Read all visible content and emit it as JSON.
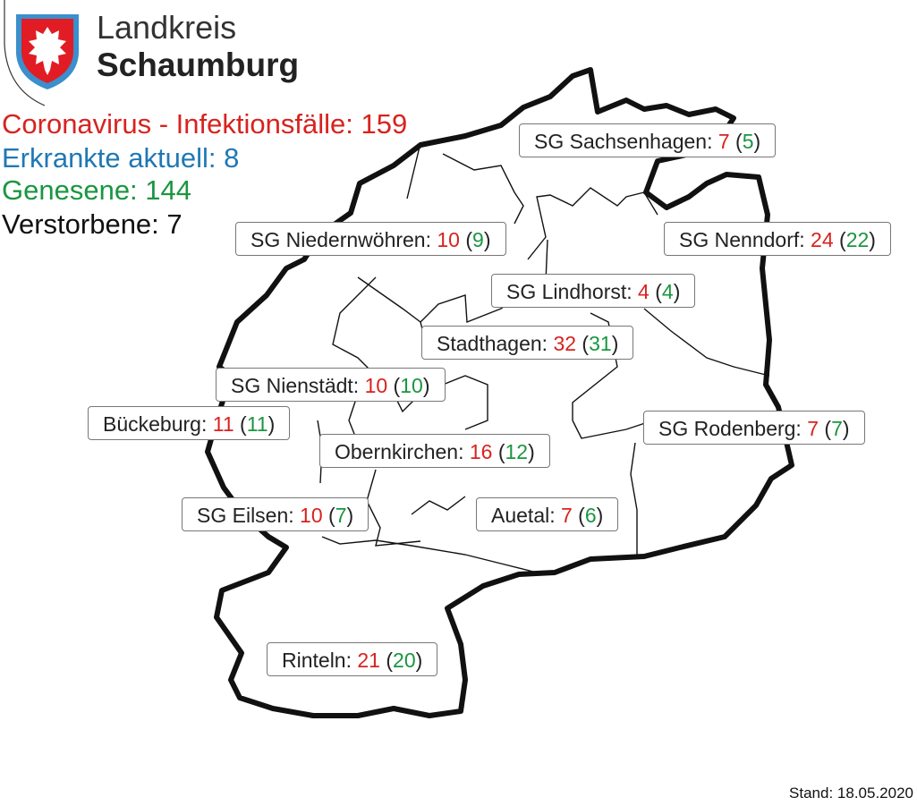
{
  "header": {
    "brand_line1": "Landkreis",
    "brand_line2": "Schaumburg",
    "logo_icon": "coat-of-arms-nettle-leaf-icon"
  },
  "stats": [
    {
      "text": "Coronavirus - Infektionsfälle: 159",
      "color": "#d7231f"
    },
    {
      "text": "Erkrankte aktuell: 8",
      "color": "#1f78b4"
    },
    {
      "text": "Genesene: 144",
      "color": "#1a9641"
    },
    {
      "text": "Verstorbene: 7",
      "color": "#111111"
    }
  ],
  "legend_colors": {
    "cases": "#d7231f",
    "recovered": "#1a9641"
  },
  "regions": [
    {
      "name": "SG Sachsenhagen:",
      "cases": "7",
      "recovered": "5"
    },
    {
      "name": "SG Niedernwöhren:",
      "cases": "10",
      "recovered": "9"
    },
    {
      "name": "SG Nenndorf:",
      "cases": "24",
      "recovered": "22"
    },
    {
      "name": "SG Lindhorst:",
      "cases": "4",
      "recovered": "4"
    },
    {
      "name": "Stadthagen:",
      "cases": "32",
      "recovered": "31"
    },
    {
      "name": "SG Nienstädt:",
      "cases": "10",
      "recovered": "10"
    },
    {
      "name": "Bückeburg:",
      "cases": "11",
      "recovered": "11"
    },
    {
      "name": "SG Rodenberg:",
      "cases": "7",
      "recovered": "7"
    },
    {
      "name": "Obernkirchen:",
      "cases": "16",
      "recovered": "12"
    },
    {
      "name": "SG Eilsen:",
      "cases": "10",
      "recovered": "7"
    },
    {
      "name": "Auetal:",
      "cases": "7",
      "recovered": "6"
    },
    {
      "name": "Rinteln:",
      "cases": "21",
      "recovered": "20"
    }
  ],
  "footer": {
    "stand": "Stand: 18.05.2020"
  }
}
